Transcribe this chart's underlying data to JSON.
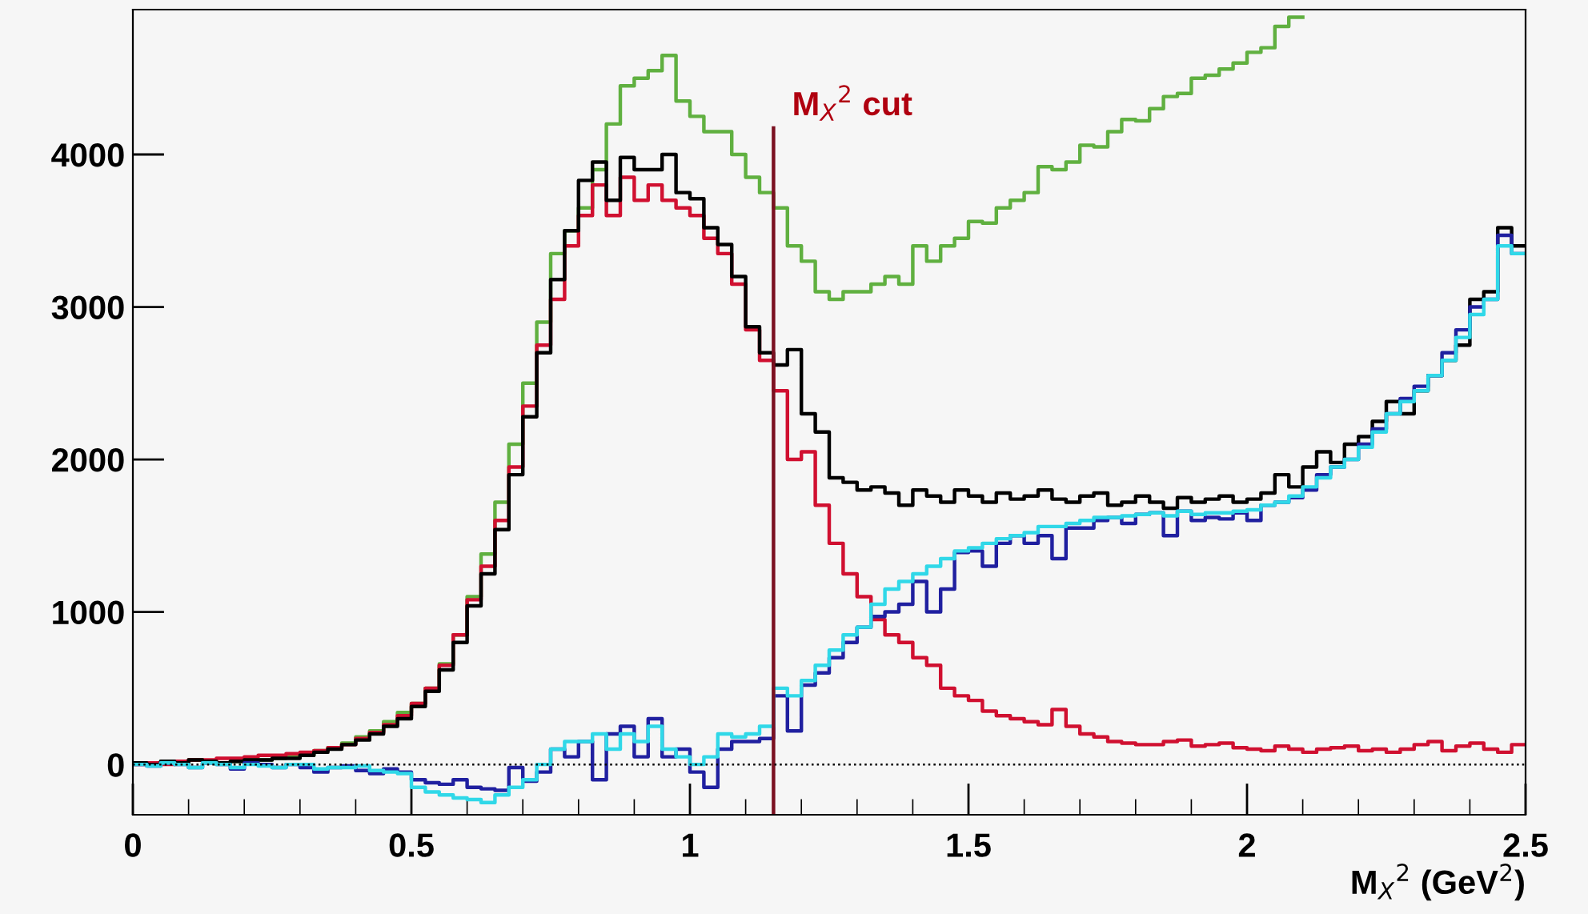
{
  "chart_data": {
    "type": "histogram",
    "xlabel": "M$_{X}$$^{2}$ (GeV$^{2}$)",
    "bins": [
      0,
      0.025,
      0.05,
      0.075,
      0.1,
      0.125,
      0.15,
      0.175,
      0.2,
      0.225,
      0.25,
      0.275,
      0.3,
      0.325,
      0.35,
      0.375,
      0.4,
      0.425,
      0.45,
      0.475,
      0.5,
      0.525,
      0.55,
      0.575,
      0.6,
      0.625,
      0.65,
      0.675,
      0.7,
      0.725,
      0.75,
      0.775,
      0.8,
      0.825,
      0.85,
      0.875,
      0.9,
      0.925,
      0.95,
      0.975,
      1.0,
      1.025,
      1.05,
      1.075,
      1.1,
      1.125,
      1.15,
      1.175,
      1.2,
      1.225,
      1.25,
      1.275,
      1.3,
      1.325,
      1.35,
      1.375,
      1.4,
      1.425,
      1.45,
      1.475,
      1.5,
      1.525,
      1.55,
      1.575,
      1.6,
      1.625,
      1.65,
      1.675,
      1.7,
      1.725,
      1.75,
      1.775,
      1.8,
      1.825,
      1.85,
      1.875,
      1.9,
      1.925,
      1.95,
      1.975,
      2.0,
      2.025,
      2.05,
      2.075,
      2.1,
      2.125,
      2.15,
      2.175,
      2.2,
      2.225,
      2.25,
      2.275,
      2.3,
      2.325,
      2.35,
      2.375,
      2.4,
      2.425,
      2.45,
      2.475,
      2.5
    ],
    "series": [
      {
        "color": "#60b040",
        "bins": [
          0,
          0.025,
          0.05,
          0.075,
          0.1,
          0.125,
          0.15,
          0.175,
          0.2,
          0.225,
          0.25,
          0.275,
          0.3,
          0.325,
          0.35,
          0.375,
          0.4,
          0.425,
          0.45,
          0.475,
          0.5,
          0.525,
          0.55,
          0.575,
          0.6,
          0.625,
          0.65,
          0.675,
          0.7,
          0.725,
          0.75,
          0.775,
          0.8,
          0.825,
          0.85,
          0.875,
          0.9,
          0.925,
          0.95,
          0.975,
          1.0,
          1.025,
          1.05,
          1.075,
          1.1,
          1.125,
          1.15,
          1.175,
          1.2,
          1.225,
          1.25,
          1.275,
          1.3,
          1.325,
          1.35,
          1.375,
          1.4,
          1.425,
          1.45,
          1.475,
          1.5,
          1.525,
          1.55,
          1.575,
          1.6,
          1.625,
          1.65,
          1.675,
          1.7,
          1.725,
          1.75,
          1.775,
          1.8,
          1.825,
          1.85,
          1.875,
          1.9,
          1.925,
          1.95,
          1.975,
          2.0,
          2.025,
          2.05,
          2.075,
          2.1
        ],
        "values": [
          10,
          0,
          20,
          10,
          30,
          20,
          10,
          20,
          30,
          30,
          40,
          50,
          60,
          90,
          110,
          140,
          180,
          220,
          280,
          340,
          400,
          500,
          660,
          850,
          1100,
          1380,
          1720,
          2100,
          2500,
          2900,
          3350,
          3500,
          3650,
          3900,
          4200,
          4450,
          4500,
          4550,
          4650,
          4350,
          4250,
          4150,
          4150,
          4000,
          3850,
          3750,
          3650,
          3400,
          3300,
          3100,
          3050,
          3100,
          3100,
          3150,
          3200,
          3150,
          3400,
          3300,
          3400,
          3450,
          3560,
          3550,
          3650,
          3700,
          3750,
          3920,
          3900,
          3950,
          4060,
          4050,
          4150,
          4230,
          4220,
          4300,
          4380,
          4400,
          4500,
          4520,
          4560,
          4600,
          4670,
          4700,
          4840,
          4900
        ]
      },
      {
        "color": "#d01030",
        "values": [
          0,
          10,
          0,
          20,
          30,
          30,
          40,
          40,
          50,
          60,
          60,
          70,
          80,
          90,
          110,
          130,
          170,
          210,
          260,
          320,
          400,
          500,
          650,
          850,
          1080,
          1300,
          1600,
          1950,
          2350,
          2750,
          3050,
          3400,
          3600,
          3800,
          3600,
          3850,
          3700,
          3800,
          3700,
          3650,
          3600,
          3450,
          3350,
          3150,
          2850,
          2650,
          2450,
          2000,
          2050,
          1700,
          1450,
          1250,
          1100,
          950,
          850,
          800,
          700,
          650,
          500,
          450,
          420,
          350,
          320,
          300,
          280,
          260,
          360,
          250,
          200,
          180,
          150,
          140,
          130,
          130,
          150,
          160,
          120,
          130,
          140,
          110,
          100,
          90,
          120,
          100,
          80,
          100,
          110,
          120,
          90,
          100,
          80,
          100,
          130,
          150,
          90,
          120,
          140,
          100,
          80,
          130
        ]
      },
      {
        "color": "#000000",
        "values": [
          10,
          0,
          20,
          10,
          30,
          20,
          10,
          20,
          30,
          30,
          40,
          40,
          60,
          80,
          100,
          130,
          160,
          200,
          250,
          300,
          380,
          480,
          620,
          800,
          1040,
          1250,
          1540,
          1900,
          2280,
          2700,
          3180,
          3500,
          3830,
          3950,
          3700,
          3980,
          3900,
          3900,
          4000,
          3750,
          3710,
          3520,
          3410,
          3200,
          2870,
          2700,
          2620,
          2720,
          2300,
          2180,
          1880,
          1850,
          1800,
          1820,
          1780,
          1700,
          1800,
          1760,
          1720,
          1800,
          1760,
          1720,
          1780,
          1740,
          1760,
          1800,
          1740,
          1720,
          1760,
          1780,
          1700,
          1720,
          1760,
          1720,
          1680,
          1750,
          1720,
          1740,
          1760,
          1720,
          1740,
          1780,
          1900,
          1820,
          1950,
          2050,
          1980,
          2100,
          2150,
          2250,
          2380,
          2300,
          2450,
          2550,
          2650,
          2750,
          3050,
          3100,
          3520,
          3400
        ]
      },
      {
        "color": "#2020a0",
        "values": [
          0,
          -10,
          10,
          0,
          -20,
          10,
          0,
          -30,
          10,
          0,
          -20,
          0,
          -20,
          -50,
          -20,
          -10,
          -40,
          -60,
          -30,
          -50,
          -100,
          -120,
          -130,
          -100,
          -150,
          -160,
          -170,
          -20,
          -110,
          -50,
          100,
          50,
          150,
          -100,
          200,
          250,
          50,
          300,
          50,
          100,
          -50,
          -150,
          100,
          150,
          150,
          170,
          450,
          220,
          520,
          600,
          700,
          800,
          900,
          970,
          1000,
          1050,
          1200,
          1000,
          1150,
          1390,
          1400,
          1300,
          1450,
          1500,
          1450,
          1500,
          1350,
          1550,
          1550,
          1600,
          1620,
          1580,
          1640,
          1650,
          1500,
          1660,
          1600,
          1620,
          1610,
          1650,
          1600,
          1700,
          1720,
          1750,
          1800,
          1900,
          1950,
          2000,
          2100,
          2200,
          2300,
          2400,
          2480,
          2550,
          2700,
          2850,
          3000,
          3050,
          3470,
          3350
        ]
      },
      {
        "color": "#30d8e8",
        "values": [
          0,
          -10,
          10,
          0,
          -20,
          10,
          0,
          -20,
          0,
          -10,
          -20,
          0,
          0,
          -30,
          -20,
          -20,
          -10,
          -40,
          -50,
          -60,
          -150,
          -180,
          -200,
          -220,
          -230,
          -250,
          -200,
          -150,
          -100,
          0,
          100,
          150,
          150,
          200,
          100,
          200,
          150,
          250,
          100,
          50,
          0,
          50,
          200,
          180,
          200,
          250,
          500,
          450,
          550,
          650,
          750,
          850,
          900,
          1050,
          1150,
          1200,
          1250,
          1300,
          1350,
          1400,
          1420,
          1450,
          1480,
          1500,
          1520,
          1560,
          1560,
          1580,
          1600,
          1620,
          1620,
          1630,
          1640,
          1650,
          1630,
          1660,
          1640,
          1650,
          1650,
          1660,
          1670,
          1700,
          1720,
          1760,
          1820,
          1880,
          1950,
          2000,
          2080,
          2180,
          2300,
          2380,
          2450,
          2550,
          2650,
          2800,
          2950,
          3050,
          3400,
          3350
        ]
      }
    ],
    "xlim": [
      0,
      2.5
    ],
    "ylim": [
      -330,
      4950
    ],
    "xticks": [
      0,
      {
        "value": 0.5,
        "label": "0.5"
      },
      1,
      {
        "value": 1.5,
        "label": "1.5"
      },
      2,
      {
        "value": 2.5,
        "label": "2.5"
      }
    ],
    "yticks": [
      0,
      1000,
      2000,
      3000,
      4000
    ],
    "ref_lines": [
      {
        "axis": "x",
        "value": 1.15,
        "label": "M$_{X}$$^{2}$ cut",
        "color": "#7a1020"
      },
      {
        "axis": "y",
        "value": 0,
        "color": "#000000",
        "line_style": "dotted"
      }
    ],
    "grid": false,
    "legend": false
  }
}
